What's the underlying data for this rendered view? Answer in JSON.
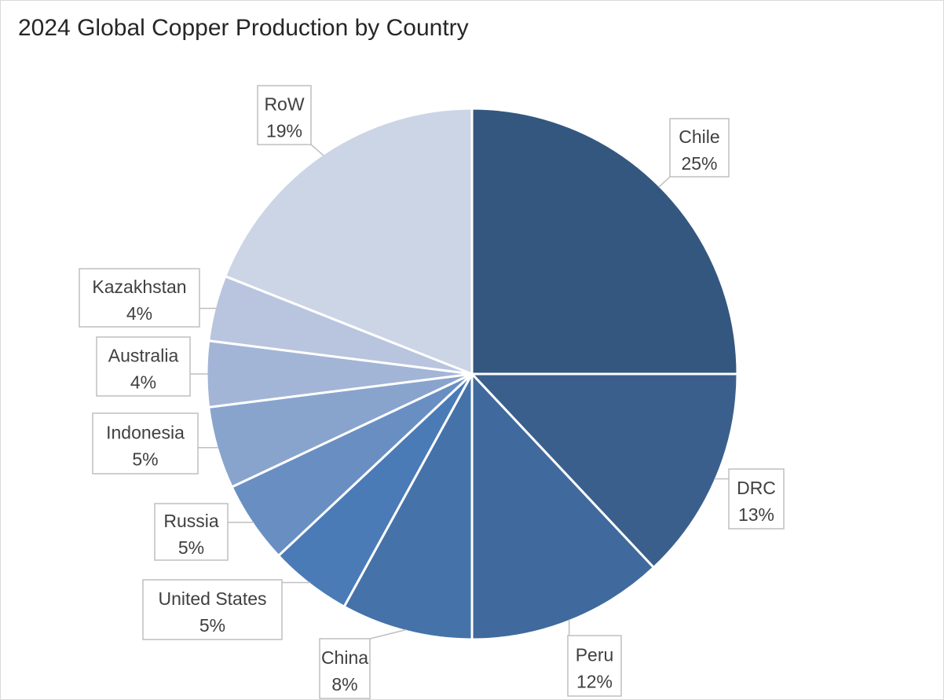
{
  "chart_data": {
    "type": "pie",
    "title": "2024 Global Copper Production by Country",
    "slices": [
      {
        "label": "Chile",
        "value": 25,
        "display": "25%",
        "color": "#34577f"
      },
      {
        "label": "DRC",
        "value": 13,
        "display": "13%",
        "color": "#3b5f8d"
      },
      {
        "label": "Peru",
        "value": 12,
        "display": "12%",
        "color": "#406a9d"
      },
      {
        "label": "China",
        "value": 8,
        "display": "8%",
        "color": "#4572a9"
      },
      {
        "label": "United States",
        "value": 5,
        "display": "5%",
        "color": "#4a7bb7"
      },
      {
        "label": "Russia",
        "value": 5,
        "display": "5%",
        "color": "#698fc2"
      },
      {
        "label": "Indonesia",
        "value": 5,
        "display": "5%",
        "color": "#88a4cd"
      },
      {
        "label": "Australia",
        "value": 4,
        "display": "4%",
        "color": "#a3b5d6"
      },
      {
        "label": "Kazakhstan",
        "value": 4,
        "display": "4%",
        "color": "#b9c5de"
      },
      {
        "label": "RoW",
        "value": 19,
        "display": "19%",
        "color": "#ccd5e6"
      }
    ]
  }
}
